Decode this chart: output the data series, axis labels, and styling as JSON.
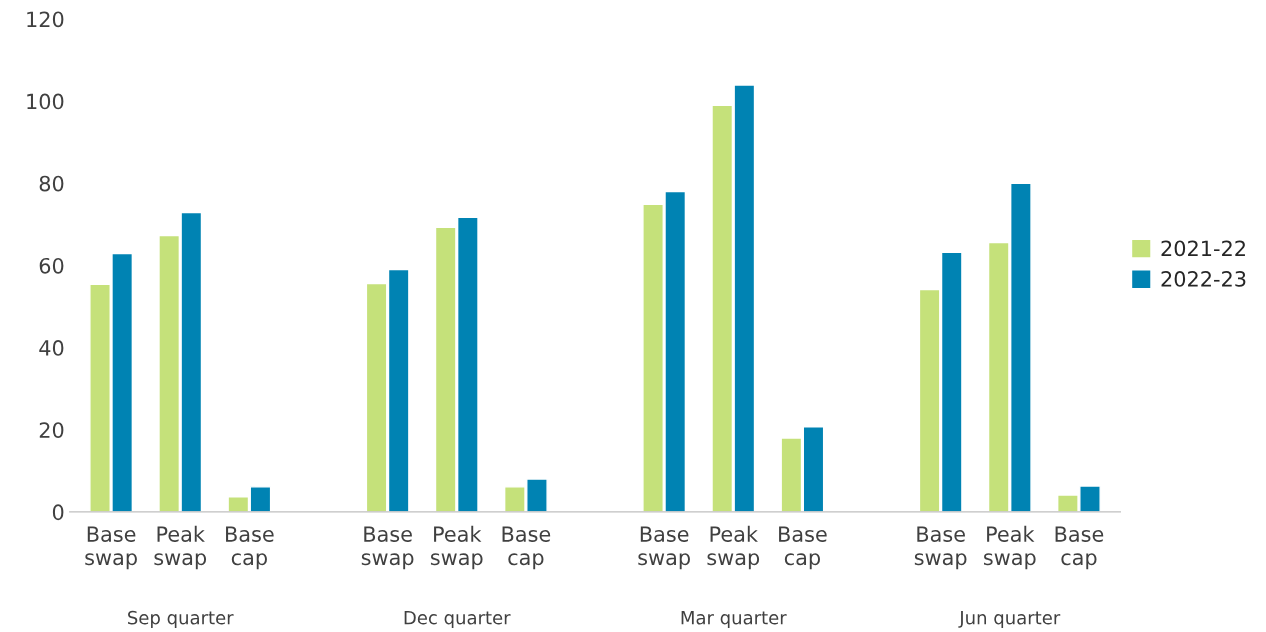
{
  "chart_data": {
    "type": "bar",
    "categories": [
      "Base\nswap",
      "Peak\nswap",
      "Base\ncap",
      null,
      "Base\nswap",
      "Peak\nswap",
      "Base\ncap",
      null,
      "Base\nswap",
      "Peak\nswap",
      "Base\ncap",
      null,
      "Base\nswap",
      "Peak\nswap",
      "Base\ncap"
    ],
    "series": [
      {
        "name": "2021-22",
        "color": "#c5e17a",
        "values": [
          55.4,
          67.3,
          3.7,
          null,
          55.6,
          69.3,
          6.1,
          null,
          74.9,
          99.0,
          18.0,
          null,
          54.1,
          65.6,
          4.1
        ]
      },
      {
        "name": "2022-23",
        "color": "#0083b3",
        "values": [
          62.9,
          72.9,
          6.1,
          null,
          59.0,
          71.7,
          8.0,
          null,
          78.0,
          103.9,
          20.7,
          null,
          63.2,
          80.0,
          6.3
        ]
      }
    ],
    "annotations": [
      "Sep quarter",
      "Dec quarter",
      "Mar quarter",
      "Jun quarter"
    ],
    "ylim": [
      0,
      120
    ],
    "yticks": [
      0,
      20,
      40,
      60,
      80,
      100,
      120
    ],
    "grid": false,
    "legend": "right"
  }
}
